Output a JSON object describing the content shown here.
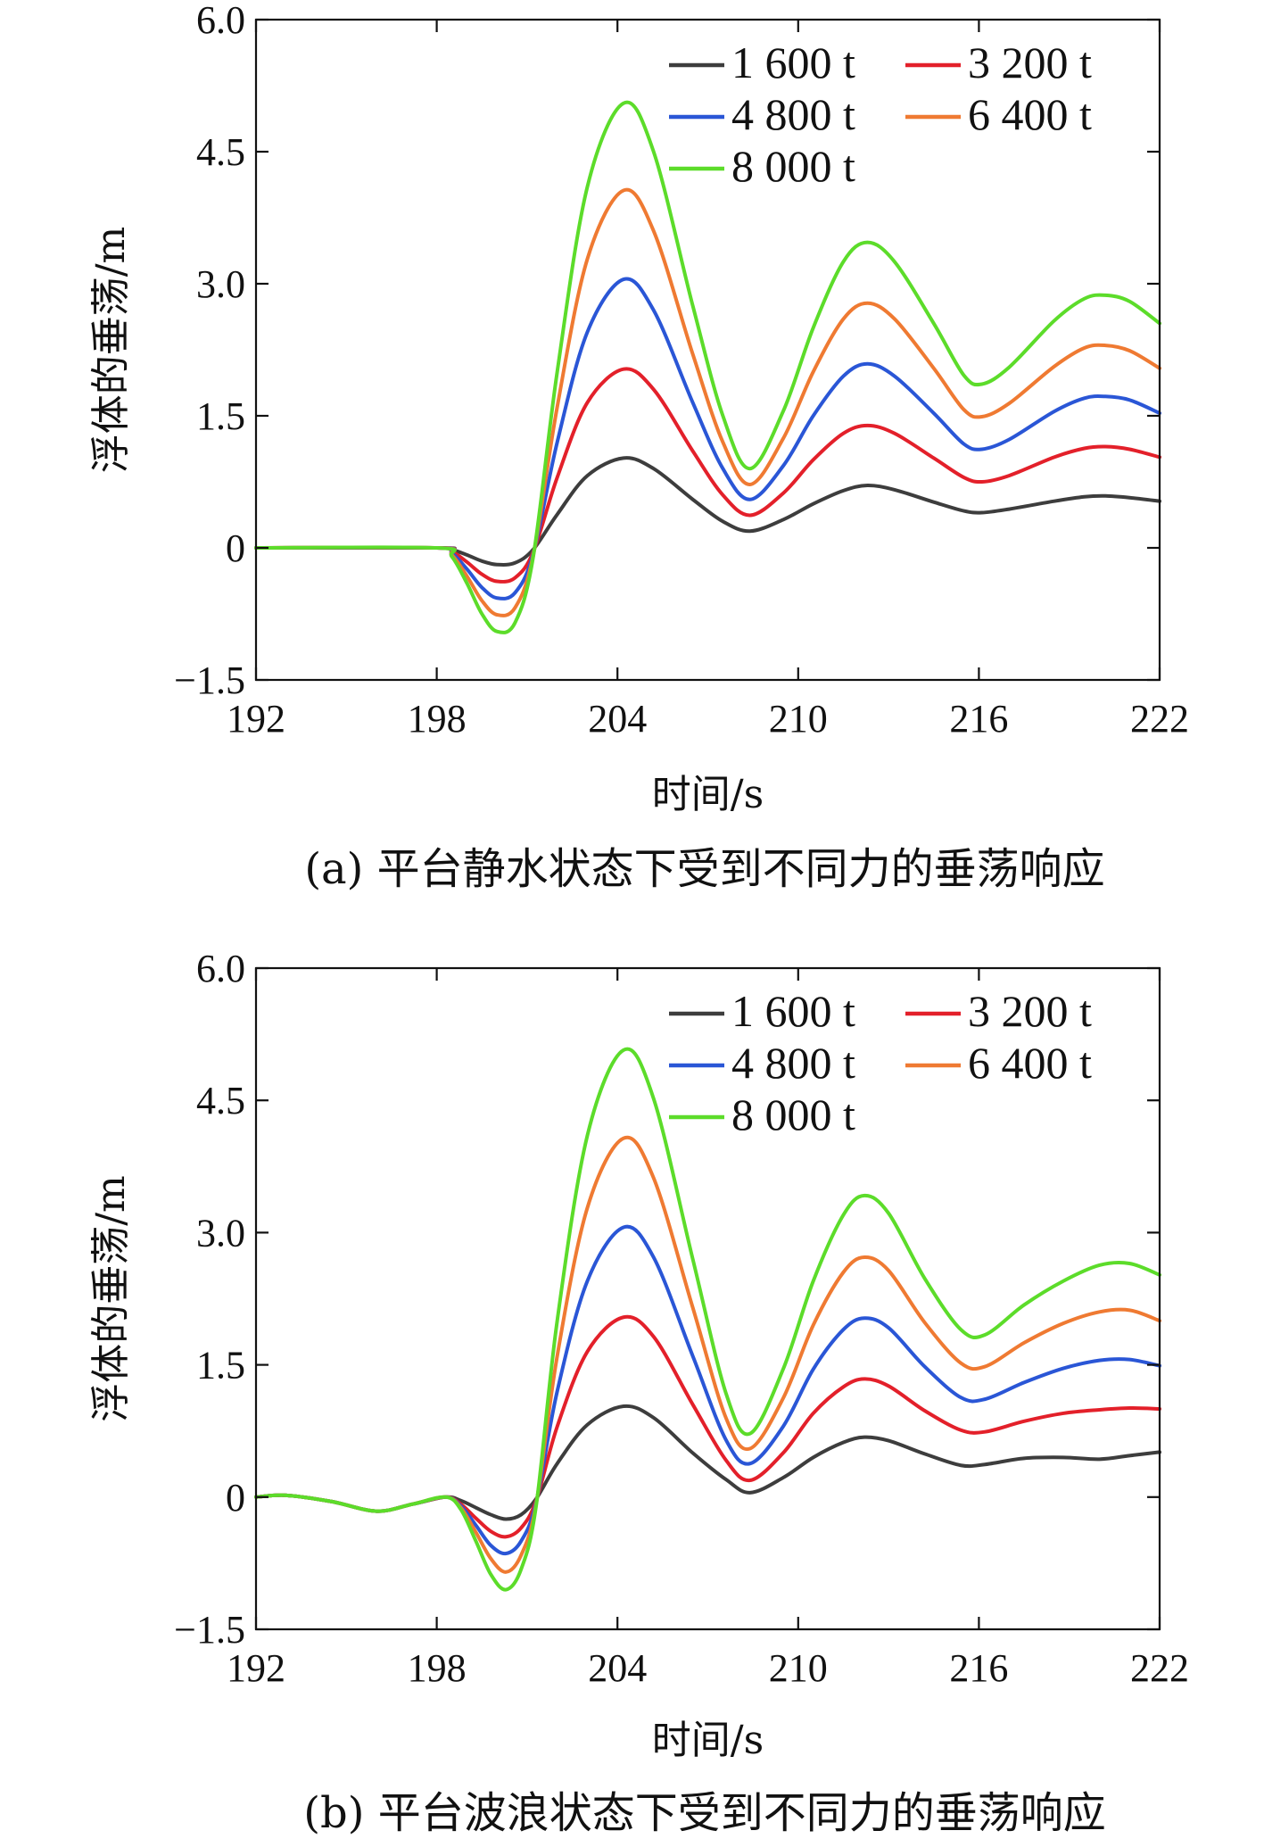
{
  "chart_data": [
    {
      "type": "line",
      "caption": "(a) 平台静水状态下受到不同力的垂荡响应",
      "xlabel": "时间/s",
      "ylabel": "浮体的垂荡/m",
      "xlim": [
        192,
        222
      ],
      "ylim": [
        -1.5,
        6.0
      ],
      "xticks": [
        192,
        198,
        204,
        210,
        216,
        222
      ],
      "xtick_labels": [
        "192",
        "198",
        "204",
        "210",
        "216",
        "222"
      ],
      "yticks": [
        -1.5,
        0,
        1.5,
        3.0,
        4.5,
        6.0
      ],
      "ytick_labels": [
        "−1.5",
        "0",
        "1.5",
        "3.0",
        "4.5",
        "6.0"
      ],
      "grid": false,
      "legend_position": "top-right",
      "series": [
        {
          "name": "1 600 t",
          "color": "#3d3d3d",
          "x": [
            192,
            198,
            198.5,
            199,
            199.5,
            200.0,
            200.6,
            201.2,
            202,
            203,
            204.2,
            205.2,
            206.5,
            207.5,
            208.4,
            209.5,
            210.5,
            211.5,
            212.3,
            213.2,
            214.5,
            215.5,
            216.1,
            217,
            218.5,
            219.5,
            220.2,
            221,
            222
          ],
          "y": [
            0,
            0,
            -0.02,
            -0.08,
            -0.15,
            -0.19,
            -0.17,
            -0.02,
            0.38,
            0.82,
            1.02,
            0.9,
            0.55,
            0.3,
            0.19,
            0.32,
            0.5,
            0.65,
            0.71,
            0.66,
            0.52,
            0.42,
            0.4,
            0.44,
            0.53,
            0.58,
            0.59,
            0.57,
            0.53
          ]
        },
        {
          "name": "3 200 t",
          "color": "#e3202a",
          "x": [
            192,
            198,
            198.5,
            199,
            199.5,
            200.0,
            200.6,
            201.2,
            202,
            203,
            204.2,
            205.2,
            206.5,
            207.5,
            208.4,
            209.5,
            210.5,
            211.5,
            212.3,
            213.2,
            214.5,
            215.5,
            216.1,
            217,
            218.5,
            219.5,
            220.2,
            221,
            222
          ],
          "y": [
            0,
            0,
            -0.04,
            -0.16,
            -0.3,
            -0.38,
            -0.34,
            -0.05,
            0.8,
            1.65,
            2.03,
            1.8,
            1.1,
            0.6,
            0.37,
            0.62,
            1.0,
            1.3,
            1.39,
            1.3,
            1.02,
            0.8,
            0.75,
            0.82,
            1.03,
            1.13,
            1.15,
            1.12,
            1.03
          ]
        },
        {
          "name": "4 800 t",
          "color": "#2a56d6",
          "x": [
            192,
            198,
            198.5,
            199,
            199.5,
            200.0,
            200.6,
            201.2,
            202,
            203,
            204.2,
            205.2,
            206.5,
            207.5,
            208.4,
            209.5,
            210.5,
            211.5,
            212.3,
            213.2,
            214.5,
            215.5,
            216.1,
            217,
            218.5,
            219.5,
            220.2,
            221,
            222
          ],
          "y": [
            0,
            0,
            -0.06,
            -0.24,
            -0.45,
            -0.57,
            -0.51,
            -0.07,
            1.2,
            2.45,
            3.05,
            2.7,
            1.65,
            0.9,
            0.55,
            0.93,
            1.5,
            1.95,
            2.09,
            1.95,
            1.53,
            1.18,
            1.12,
            1.23,
            1.55,
            1.7,
            1.72,
            1.68,
            1.53
          ]
        },
        {
          "name": "6 400 t",
          "color": "#ef7a32",
          "x": [
            192,
            198,
            198.5,
            199,
            199.5,
            200.0,
            200.6,
            201.2,
            202,
            203,
            204.2,
            205.2,
            206.5,
            207.5,
            208.4,
            209.5,
            210.5,
            211.5,
            212.3,
            213.2,
            214.5,
            215.5,
            216.1,
            217,
            218.5,
            219.5,
            220.2,
            221,
            222
          ],
          "y": [
            0,
            0,
            -0.08,
            -0.32,
            -0.6,
            -0.76,
            -0.68,
            -0.09,
            1.6,
            3.28,
            4.06,
            3.6,
            2.2,
            1.2,
            0.72,
            1.24,
            2.0,
            2.6,
            2.78,
            2.6,
            2.04,
            1.57,
            1.49,
            1.64,
            2.06,
            2.27,
            2.3,
            2.24,
            2.04
          ]
        },
        {
          "name": "8 000 t",
          "color": "#5cdc2a",
          "x": [
            192,
            198,
            198.5,
            199,
            199.5,
            200.0,
            200.6,
            201.2,
            202,
            203,
            204.2,
            205.2,
            206.5,
            207.5,
            208.4,
            209.5,
            210.5,
            211.5,
            212.3,
            213.2,
            214.5,
            215.5,
            216.1,
            217,
            218.5,
            219.5,
            220.2,
            221,
            222
          ],
          "y": [
            0,
            0,
            -0.1,
            -0.4,
            -0.75,
            -0.95,
            -0.85,
            -0.11,
            2.0,
            4.1,
            5.05,
            4.5,
            2.75,
            1.5,
            0.9,
            1.55,
            2.5,
            3.25,
            3.47,
            3.25,
            2.55,
            1.96,
            1.86,
            2.05,
            2.58,
            2.83,
            2.87,
            2.8,
            2.55
          ]
        }
      ]
    },
    {
      "type": "line",
      "caption": "(b) 平台波浪状态下受到不同力的垂荡响应",
      "xlabel": "时间/s",
      "ylabel": "浮体的垂荡/m",
      "xlim": [
        192,
        222
      ],
      "ylim": [
        -1.5,
        6.0
      ],
      "xticks": [
        192,
        198,
        204,
        210,
        216,
        222
      ],
      "xtick_labels": [
        "192",
        "198",
        "204",
        "210",
        "216",
        "222"
      ],
      "yticks": [
        -1.5,
        0,
        1.5,
        3.0,
        4.5,
        6.0
      ],
      "ytick_labels": [
        "−1.5",
        "0",
        "1.5",
        "3.0",
        "4.5",
        "6.0"
      ],
      "grid": false,
      "legend_position": "top-right",
      "series": [
        {
          "name": "1 600 t",
          "color": "#3d3d3d",
          "x": [
            192,
            193,
            194.5,
            196,
            197.2,
            198.3,
            198.8,
            199.3,
            199.8,
            200.3,
            200.8,
            201.3,
            202,
            203,
            204.2,
            205.2,
            206.5,
            207.6,
            208.4,
            209.5,
            210.5,
            211.5,
            212.2,
            213,
            214.2,
            215.4,
            216.2,
            217.5,
            218.8,
            220,
            221,
            222
          ],
          "y": [
            0,
            0.02,
            -0.05,
            -0.16,
            -0.08,
            0,
            -0.04,
            -0.12,
            -0.2,
            -0.25,
            -0.2,
            -0.02,
            0.38,
            0.82,
            1.03,
            0.9,
            0.5,
            0.2,
            0.05,
            0.22,
            0.45,
            0.62,
            0.68,
            0.64,
            0.49,
            0.36,
            0.37,
            0.44,
            0.45,
            0.43,
            0.47,
            0.51
          ]
        },
        {
          "name": "3 200 t",
          "color": "#e3202a",
          "x": [
            192,
            193,
            194.5,
            196,
            197.2,
            198.3,
            198.8,
            199.3,
            199.8,
            200.3,
            200.8,
            201.3,
            202,
            203,
            204.2,
            205.2,
            206.5,
            207.6,
            208.4,
            209.5,
            210.5,
            211.5,
            212.2,
            213,
            214.2,
            215.4,
            216.2,
            217.5,
            218.8,
            220,
            221,
            222
          ],
          "y": [
            0,
            0.02,
            -0.05,
            -0.16,
            -0.08,
            0,
            -0.08,
            -0.24,
            -0.39,
            -0.45,
            -0.35,
            -0.04,
            0.8,
            1.65,
            2.04,
            1.82,
            1.05,
            0.42,
            0.19,
            0.5,
            0.95,
            1.25,
            1.34,
            1.26,
            0.98,
            0.76,
            0.74,
            0.86,
            0.95,
            0.99,
            1.01,
            1.0
          ]
        },
        {
          "name": "4 800 t",
          "color": "#2a56d6",
          "x": [
            192,
            193,
            194.5,
            196,
            197.2,
            198.3,
            198.8,
            199.3,
            199.8,
            200.3,
            200.8,
            201.3,
            202,
            203,
            204.2,
            205.2,
            206.5,
            207.6,
            208.4,
            209.5,
            210.5,
            211.5,
            212.2,
            213,
            214.2,
            215.4,
            216.2,
            217.5,
            218.8,
            220,
            221,
            222
          ],
          "y": [
            0,
            0.02,
            -0.05,
            -0.16,
            -0.08,
            0,
            -0.1,
            -0.32,
            -0.55,
            -0.64,
            -0.5,
            -0.06,
            1.2,
            2.45,
            3.06,
            2.72,
            1.6,
            0.65,
            0.38,
            0.8,
            1.45,
            1.9,
            2.03,
            1.92,
            1.48,
            1.13,
            1.11,
            1.3,
            1.46,
            1.55,
            1.56,
            1.49
          ]
        },
        {
          "name": "6 400 t",
          "color": "#ef7a32",
          "x": [
            192,
            193,
            194.5,
            196,
            197.2,
            198.3,
            198.8,
            199.3,
            199.8,
            200.3,
            200.8,
            201.3,
            202,
            203,
            204.2,
            205.2,
            206.5,
            207.6,
            208.4,
            209.5,
            210.5,
            211.5,
            212.2,
            213,
            214.2,
            215.4,
            216.2,
            217.5,
            218.8,
            220,
            221,
            222
          ],
          "y": [
            0,
            0.02,
            -0.05,
            -0.16,
            -0.08,
            0,
            -0.12,
            -0.4,
            -0.7,
            -0.85,
            -0.66,
            -0.08,
            1.6,
            3.28,
            4.07,
            3.62,
            2.15,
            0.9,
            0.55,
            1.12,
            1.95,
            2.55,
            2.72,
            2.57,
            1.98,
            1.52,
            1.48,
            1.75,
            1.97,
            2.1,
            2.12,
            2.0
          ]
        },
        {
          "name": "8 000 t",
          "color": "#5cdc2a",
          "x": [
            192,
            193,
            194.5,
            196,
            197.2,
            198.3,
            198.8,
            199.3,
            199.8,
            200.3,
            200.8,
            201.3,
            202,
            203,
            204.2,
            205.2,
            206.5,
            207.6,
            208.4,
            209.5,
            210.5,
            211.5,
            212.2,
            213,
            214.2,
            215.4,
            216.2,
            217.5,
            218.8,
            220,
            221,
            222
          ],
          "y": [
            0,
            0.02,
            -0.05,
            -0.16,
            -0.08,
            0,
            -0.14,
            -0.5,
            -0.88,
            -1.05,
            -0.82,
            -0.1,
            2.0,
            4.1,
            5.07,
            4.52,
            2.7,
            1.18,
            0.72,
            1.45,
            2.45,
            3.2,
            3.42,
            3.22,
            2.48,
            1.9,
            1.84,
            2.18,
            2.45,
            2.63,
            2.65,
            2.52
          ]
        }
      ]
    }
  ]
}
